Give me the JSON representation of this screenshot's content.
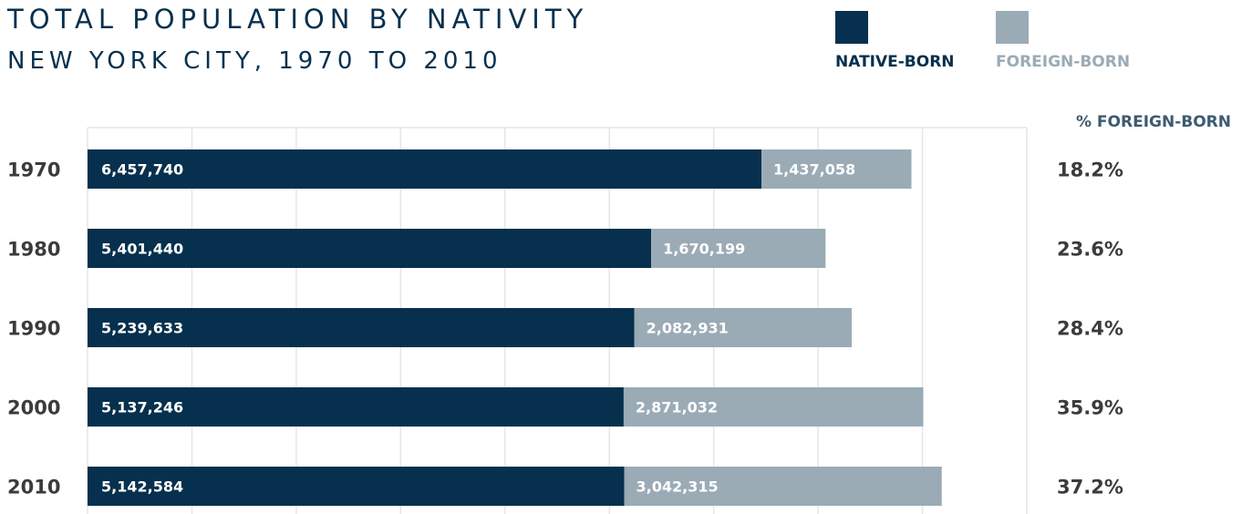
{
  "colors": {
    "native": "#06304d",
    "foreign": "#9aabb5",
    "grid": "#e6e6e6",
    "text": "#3b3b3b",
    "pct_header": "#3d5b70"
  },
  "legend": {
    "native_label": "NATIVE-BORN",
    "foreign_label": "FOREIGN-BORN"
  },
  "pct_header": "% FOREIGN-BORN",
  "chart_data": {
    "type": "bar",
    "orientation": "horizontal",
    "stacked": true,
    "title": "TOTAL POPULATION BY NATIVITY",
    "subtitle": "NEW YORK CITY, 1970 TO 2010",
    "categories": [
      "1970",
      "1980",
      "1990",
      "2000",
      "2010"
    ],
    "series": [
      {
        "name": "NATIVE-BORN",
        "values": [
          6457740,
          5401440,
          5239633,
          5137246,
          5142584
        ],
        "labels": [
          "6,457,740",
          "5,401,440",
          "5,239,633",
          "5,137,246",
          "5,142,584"
        ]
      },
      {
        "name": "FOREIGN-BORN",
        "values": [
          1437058,
          1670199,
          2082931,
          2871032,
          3042315
        ],
        "labels": [
          "1,437,058",
          "1,670,199",
          "2,082,931",
          "2,871,032",
          "3,042,315"
        ]
      }
    ],
    "percent_foreign_born": [
      "18.2%",
      "23.6%",
      "28.4%",
      "35.9%",
      "37.2%"
    ],
    "xlim": [
      0,
      9000000
    ],
    "grid": true,
    "legend_position": "top-right"
  }
}
